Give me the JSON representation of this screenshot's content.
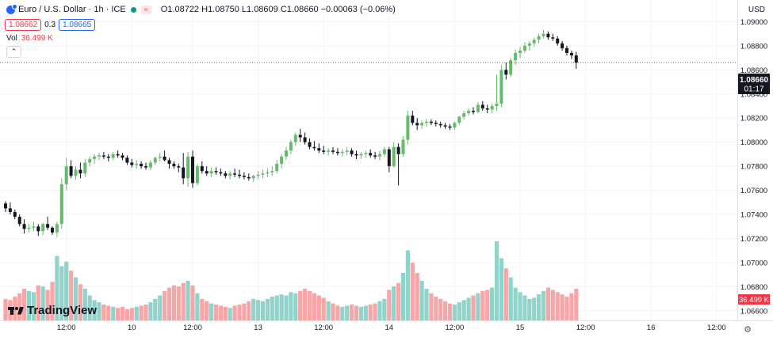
{
  "header": {
    "symbol": "Euro / U.S. Dollar · 1h · ICE",
    "open_label": "O",
    "open": "1.08722",
    "high_label": "H",
    "high": "1.08750",
    "low_label": "L",
    "low": "1.08609",
    "close_label": "C",
    "close": "1.08660",
    "change": "−0.00063 (−0.06%)",
    "sell_price": "1.08662",
    "spread": "0.3",
    "buy_price": "1.08665",
    "vol_label": "Vol",
    "vol_value": "36.499 K",
    "collapse_glyph": "⌃",
    "currency": "USD",
    "logo_text": "TradingView",
    "settings_glyph": "⚙"
  },
  "colors": {
    "up": "#26a69a",
    "up_body": "#66bb6a",
    "down": "#131722",
    "vol_up": "#8fd3cb",
    "vol_down": "#f7a6a8",
    "grid": "#f0f3fa",
    "axis_text": "#131722",
    "price_label_bg": "#131722",
    "vol_label_bg": "#f23645"
  },
  "chart_data": {
    "type": "candlestick",
    "price_axis_ticks": [
      "1.09000",
      "1.08800",
      "1.08600",
      "1.08400",
      "1.08200",
      "1.08000",
      "1.07800",
      "1.07600",
      "1.07400",
      "1.07200",
      "1.07000",
      "1.06800",
      "1.06600"
    ],
    "ylim": [
      1.0652,
      1.0918
    ],
    "time_axis_labels": [
      {
        "label": "12:00",
        "bar": 13
      },
      {
        "label": "10",
        "bar": 27
      },
      {
        "label": "12:00",
        "bar": 40
      },
      {
        "label": "13",
        "bar": 54
      },
      {
        "label": "12:00",
        "bar": 68
      },
      {
        "label": "14",
        "bar": 82
      },
      {
        "label": "12:00",
        "bar": 96
      },
      {
        "label": "15",
        "bar": 110
      },
      {
        "label": "12:00",
        "bar": 124
      },
      {
        "label": "16",
        "bar": 138
      },
      {
        "label": "12:00",
        "bar": 152
      }
    ],
    "current_price": "1.08660",
    "countdown": "01:17",
    "current_volume": "36.499 K",
    "candles": [
      [
        1.0749,
        1.0751,
        1.0742,
        1.0745,
        19
      ],
      [
        1.0745,
        1.075,
        1.074,
        1.0742,
        18
      ],
      [
        1.0742,
        1.0744,
        1.0736,
        1.0738,
        21
      ],
      [
        1.0738,
        1.074,
        1.073,
        1.0732,
        24
      ],
      [
        1.0732,
        1.0736,
        1.0724,
        1.0728,
        28
      ],
      [
        1.0728,
        1.0732,
        1.0725,
        1.0729,
        26
      ],
      [
        1.0729,
        1.0734,
        1.0726,
        1.073,
        25
      ],
      [
        1.073,
        1.0732,
        1.0722,
        1.0726,
        31
      ],
      [
        1.0726,
        1.0733,
        1.0723,
        1.0732,
        30
      ],
      [
        1.0732,
        1.0738,
        1.0727,
        1.0729,
        27
      ],
      [
        1.0729,
        1.073,
        1.0723,
        1.0725,
        34
      ],
      [
        1.0725,
        1.0734,
        1.0721,
        1.0732,
        57
      ],
      [
        1.0732,
        1.077,
        1.0728,
        1.0765,
        48
      ],
      [
        1.0765,
        1.0787,
        1.076,
        1.078,
        52
      ],
      [
        1.078,
        1.0785,
        1.077,
        1.0772,
        44
      ],
      [
        1.0772,
        1.078,
        1.0769,
        1.0777,
        38
      ],
      [
        1.0777,
        1.0783,
        1.077,
        1.0774,
        32
      ],
      [
        1.0774,
        1.0786,
        1.0771,
        1.0783,
        28
      ],
      [
        1.0783,
        1.0788,
        1.078,
        1.0786,
        22
      ],
      [
        1.0786,
        1.079,
        1.0782,
        1.0788,
        18
      ],
      [
        1.0788,
        1.0791,
        1.0785,
        1.0789,
        16
      ],
      [
        1.0789,
        1.0792,
        1.0786,
        1.0788,
        14
      ],
      [
        1.0788,
        1.079,
        1.0784,
        1.0787,
        13
      ],
      [
        1.0787,
        1.0792,
        1.0785,
        1.079,
        12
      ],
      [
        1.079,
        1.0793,
        1.0787,
        1.0789,
        11
      ],
      [
        1.0789,
        1.0791,
        1.0785,
        1.0787,
        12
      ],
      [
        1.0787,
        1.0789,
        1.0781,
        1.0783,
        10
      ],
      [
        1.0783,
        1.0786,
        1.0779,
        1.0781,
        11
      ],
      [
        1.0781,
        1.0785,
        1.0778,
        1.0782,
        12
      ],
      [
        1.0782,
        1.0784,
        1.0778,
        1.078,
        13
      ],
      [
        1.078,
        1.0783,
        1.0777,
        1.0779,
        14
      ],
      [
        1.0779,
        1.0785,
        1.0777,
        1.0783,
        16
      ],
      [
        1.0783,
        1.0788,
        1.0781,
        1.0787,
        19
      ],
      [
        1.0787,
        1.0791,
        1.0784,
        1.0788,
        22
      ],
      [
        1.0788,
        1.0793,
        1.0784,
        1.0785,
        26
      ],
      [
        1.0785,
        1.0787,
        1.0778,
        1.0782,
        29
      ],
      [
        1.0782,
        1.0784,
        1.0778,
        1.078,
        31
      ],
      [
        1.078,
        1.0782,
        1.0775,
        1.0779,
        30
      ],
      [
        1.0779,
        1.0791,
        1.0765,
        1.077,
        33
      ],
      [
        1.077,
        1.0792,
        1.0763,
        1.0788,
        35
      ],
      [
        1.0788,
        1.0793,
        1.0762,
        1.0766,
        31
      ],
      [
        1.0766,
        1.0782,
        1.0764,
        1.078,
        24
      ],
      [
        1.078,
        1.0784,
        1.0774,
        1.0776,
        19
      ],
      [
        1.0776,
        1.078,
        1.0772,
        1.0774,
        17
      ],
      [
        1.0774,
        1.0779,
        1.0771,
        1.0776,
        15
      ],
      [
        1.0776,
        1.0779,
        1.0773,
        1.0775,
        14
      ],
      [
        1.0775,
        1.0778,
        1.0772,
        1.0774,
        13
      ],
      [
        1.0774,
        1.0776,
        1.077,
        1.0772,
        12
      ],
      [
        1.0772,
        1.0776,
        1.0769,
        1.0774,
        11
      ],
      [
        1.0774,
        1.0778,
        1.0771,
        1.0773,
        13
      ],
      [
        1.0773,
        1.0777,
        1.077,
        1.0772,
        14
      ],
      [
        1.0772,
        1.0775,
        1.0769,
        1.0771,
        15
      ],
      [
        1.0771,
        1.0774,
        1.0768,
        1.077,
        17
      ],
      [
        1.077,
        1.0773,
        1.0767,
        1.0772,
        19
      ],
      [
        1.0772,
        1.0776,
        1.0769,
        1.0773,
        18
      ],
      [
        1.0773,
        1.0777,
        1.077,
        1.0774,
        17
      ],
      [
        1.0774,
        1.0778,
        1.0771,
        1.0775,
        19
      ],
      [
        1.0775,
        1.078,
        1.0772,
        1.0776,
        21
      ],
      [
        1.0776,
        1.0785,
        1.0774,
        1.0782,
        22
      ],
      [
        1.0782,
        1.079,
        1.0778,
        1.0788,
        23
      ],
      [
        1.0788,
        1.0796,
        1.0785,
        1.0793,
        22
      ],
      [
        1.0793,
        1.0802,
        1.079,
        1.08,
        25
      ],
      [
        1.08,
        1.0808,
        1.0797,
        1.0806,
        24
      ],
      [
        1.0806,
        1.0811,
        1.08,
        1.0804,
        26
      ],
      [
        1.0804,
        1.0808,
        1.0798,
        1.08,
        28
      ],
      [
        1.08,
        1.0803,
        1.0794,
        1.0796,
        26
      ],
      [
        1.0796,
        1.0801,
        1.0793,
        1.0795,
        24
      ],
      [
        1.0795,
        1.0799,
        1.0791,
        1.0793,
        22
      ],
      [
        1.0793,
        1.0797,
        1.079,
        1.0792,
        20
      ],
      [
        1.0792,
        1.0795,
        1.0789,
        1.0793,
        17
      ],
      [
        1.0793,
        1.0796,
        1.079,
        1.0792,
        15
      ],
      [
        1.0792,
        1.0795,
        1.0789,
        1.0791,
        13
      ],
      [
        1.0791,
        1.0794,
        1.0788,
        1.0792,
        12
      ],
      [
        1.0792,
        1.0796,
        1.0789,
        1.0793,
        13
      ],
      [
        1.0793,
        1.0795,
        1.0788,
        1.079,
        14
      ],
      [
        1.079,
        1.0793,
        1.0786,
        1.0789,
        13
      ],
      [
        1.0789,
        1.0792,
        1.0786,
        1.079,
        12
      ],
      [
        1.079,
        1.0793,
        1.0787,
        1.0791,
        13
      ],
      [
        1.0791,
        1.0794,
        1.0787,
        1.0789,
        14
      ],
      [
        1.0789,
        1.0792,
        1.0786,
        1.0788,
        15
      ],
      [
        1.0788,
        1.0793,
        1.0785,
        1.079,
        17
      ],
      [
        1.079,
        1.0796,
        1.0788,
        1.0794,
        19
      ],
      [
        1.0794,
        1.0796,
        1.0775,
        1.078,
        27
      ],
      [
        1.078,
        1.08,
        1.0779,
        1.0796,
        30
      ],
      [
        1.0796,
        1.0799,
        1.0764,
        1.079,
        33
      ],
      [
        1.079,
        1.0805,
        1.0788,
        1.0802,
        42
      ],
      [
        1.0802,
        1.0826,
        1.0798,
        1.0822,
        62
      ],
      [
        1.0822,
        1.0826,
        1.0814,
        1.0816,
        51
      ],
      [
        1.0816,
        1.082,
        1.081,
        1.0814,
        42
      ],
      [
        1.0814,
        1.0818,
        1.0811,
        1.0816,
        35
      ],
      [
        1.0816,
        1.0819,
        1.0813,
        1.0817,
        28
      ],
      [
        1.0817,
        1.0819,
        1.0814,
        1.0816,
        24
      ],
      [
        1.0816,
        1.0818,
        1.0813,
        1.0815,
        21
      ],
      [
        1.0815,
        1.0817,
        1.0812,
        1.0814,
        19
      ],
      [
        1.0814,
        1.0816,
        1.0811,
        1.0813,
        17
      ],
      [
        1.0813,
        1.0815,
        1.081,
        1.0812,
        15
      ],
      [
        1.0812,
        1.0817,
        1.081,
        1.0816,
        14
      ],
      [
        1.0816,
        1.0822,
        1.0814,
        1.0821,
        16
      ],
      [
        1.0821,
        1.0826,
        1.0819,
        1.0824,
        18
      ],
      [
        1.0824,
        1.0828,
        1.0822,
        1.0826,
        20
      ],
      [
        1.0826,
        1.0829,
        1.0823,
        1.0825,
        22
      ],
      [
        1.0825,
        1.0833,
        1.0824,
        1.0831,
        24
      ],
      [
        1.0831,
        1.0834,
        1.0826,
        1.0828,
        26
      ],
      [
        1.0828,
        1.0831,
        1.0824,
        1.0827,
        27
      ],
      [
        1.0827,
        1.0832,
        1.0824,
        1.083,
        29
      ],
      [
        1.083,
        1.0856,
        1.0826,
        1.0832,
        70
      ],
      [
        1.0832,
        1.0864,
        1.0829,
        1.086,
        55
      ],
      [
        1.086,
        1.0866,
        1.0852,
        1.0856,
        46
      ],
      [
        1.0856,
        1.087,
        1.0854,
        1.0868,
        38
      ],
      [
        1.0868,
        1.0877,
        1.0864,
        1.0874,
        29
      ],
      [
        1.0874,
        1.0879,
        1.087,
        1.0876,
        25
      ],
      [
        1.0876,
        1.0883,
        1.0874,
        1.088,
        22
      ],
      [
        1.088,
        1.0884,
        1.0876,
        1.0882,
        19
      ],
      [
        1.0882,
        1.0887,
        1.0879,
        1.0885,
        20
      ],
      [
        1.0885,
        1.089,
        1.0882,
        1.0888,
        23
      ],
      [
        1.0888,
        1.0893,
        1.0886,
        1.089,
        26
      ],
      [
        1.089,
        1.0892,
        1.0885,
        1.0887,
        29
      ],
      [
        1.0887,
        1.089,
        1.0884,
        1.0886,
        27
      ],
      [
        1.0886,
        1.0888,
        1.088,
        1.0882,
        25
      ],
      [
        1.0882,
        1.0884,
        1.0876,
        1.0878,
        23
      ],
      [
        1.0878,
        1.088,
        1.0872,
        1.0874,
        21
      ],
      [
        1.0874,
        1.0876,
        1.0869,
        1.0872,
        24
      ],
      [
        1.0872,
        1.0875,
        1.08609,
        1.0866,
        28
      ]
    ]
  }
}
